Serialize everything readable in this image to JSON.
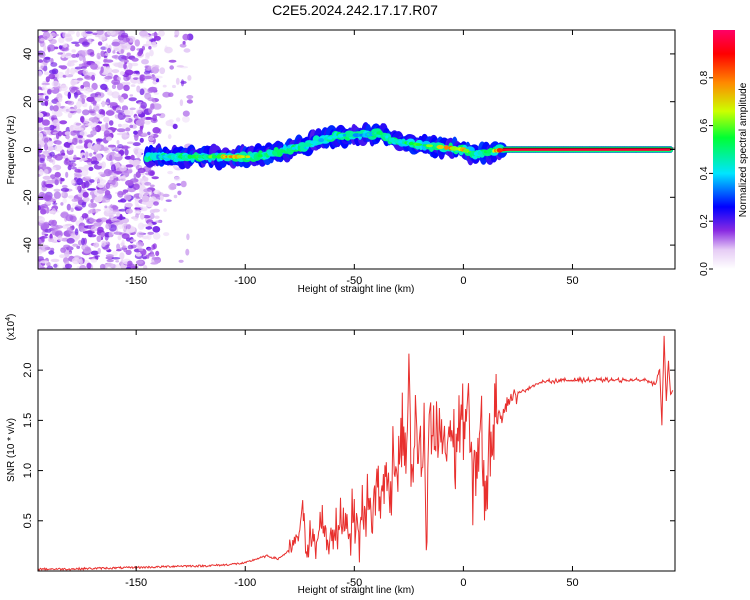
{
  "chart_data": [
    {
      "type": "heatmap",
      "title": "C2E5.2024.242.17.17.R07",
      "xlabel": "Height of straight line (km)",
      "ylabel": "Frequency (Hz)",
      "xlim": [
        -195,
        97
      ],
      "ylim": [
        -50,
        50
      ],
      "xticks": [
        "-150",
        "-100",
        "-50",
        "0",
        "50"
      ],
      "yticks": [
        "40",
        "20",
        "0",
        "-20",
        "-40"
      ],
      "grid": false,
      "colorbar": {
        "label": "Normalized spectral amplitude",
        "range": [
          0,
          1
        ],
        "ticks": [
          "0.0",
          "0.2",
          "0.4",
          "0.6",
          "0.8"
        ],
        "colors": [
          "#ffffff",
          "#e6ccf5",
          "#8a2be2",
          "#0000ff",
          "#00e5ff",
          "#00ff33",
          "#ccff00",
          "#ff8800",
          "#ff0000",
          "#ff0066"
        ]
      },
      "ridge": {
        "x": [
          -145,
          -135,
          -125,
          -115,
          -105,
          -95,
          -85,
          -75,
          -65,
          -55,
          -45,
          -38,
          -33,
          -28,
          -20,
          -10,
          0,
          5,
          10,
          20,
          40,
          60,
          80,
          95
        ],
        "y": [
          -3,
          -3,
          -3,
          -3,
          -3,
          -3,
          -1,
          1,
          4,
          6,
          6,
          7,
          4,
          3,
          2,
          1,
          0,
          -2,
          -1,
          0,
          0,
          0,
          0,
          0
        ],
        "amplitude": [
          0.35,
          0.45,
          0.5,
          0.6,
          0.8,
          0.55,
          0.5,
          0.45,
          0.45,
          0.45,
          0.4,
          0.5,
          0.45,
          0.5,
          0.55,
          0.75,
          0.8,
          0.45,
          0.5,
          0.95,
          0.95,
          0.95,
          0.95,
          0.95
        ]
      },
      "noise_region_x": [
        -195,
        -125
      ]
    },
    {
      "type": "line",
      "xlabel": "Height of straight line (km)",
      "ylabel": "SNR (10 * v/v)",
      "y_multiplier": "(x10",
      "y_multiplier_exp": "4",
      "y_multiplier_close": ")",
      "xlim": [
        -195,
        97
      ],
      "ylim": [
        0,
        2.4
      ],
      "xticks": [
        "-150",
        "-100",
        "-50",
        "0",
        "50"
      ],
      "yticks": [
        "0.5",
        "1.0",
        "1.5",
        "2.0"
      ],
      "grid": false,
      "color": "#e8302e",
      "series": [
        {
          "x": [
            -195,
            -180,
            -160,
            -140,
            -130,
            -120,
            -110,
            -100,
            -95,
            -90,
            -85,
            -80,
            -76,
            -74,
            -72,
            -70,
            -68,
            -65,
            -62,
            -60,
            -58,
            -55,
            -52,
            -50,
            -48,
            -45,
            -42,
            -40,
            -38,
            -36,
            -34,
            -32,
            -30,
            -28,
            -26,
            -25,
            -24,
            -23,
            -22,
            -21,
            -20,
            -19,
            -18,
            -17,
            -16,
            -15,
            -14,
            -12,
            -10,
            -8,
            -6,
            -4,
            -2,
            0,
            2,
            4,
            6,
            8,
            10,
            12,
            14,
            16,
            18,
            20,
            24,
            28,
            32,
            36,
            40,
            50,
            60,
            70,
            80,
            85,
            88,
            90,
            91,
            92,
            93,
            94,
            95,
            96
          ],
          "y": [
            0.02,
            0.02,
            0.03,
            0.04,
            0.05,
            0.05,
            0.06,
            0.08,
            0.12,
            0.15,
            0.12,
            0.2,
            0.3,
            0.62,
            0.25,
            0.35,
            0.2,
            0.5,
            0.28,
            0.45,
            0.35,
            0.55,
            0.4,
            0.6,
            0.35,
            0.7,
            0.5,
            0.9,
            0.6,
            1.1,
            0.7,
            1.2,
            0.9,
            1.6,
            1.1,
            2.2,
            1.0,
            0.8,
            1.6,
            1.2,
            1.4,
            0.9,
            1.5,
            0.15,
            1.3,
            1.5,
            1.2,
            1.3,
            1.4,
            1.2,
            1.5,
            1.1,
            1.6,
            1.3,
            1.7,
            0.9,
            1.2,
            1.4,
            0.75,
            1.4,
            1.3,
            1.6,
            1.55,
            1.7,
            1.75,
            1.8,
            1.85,
            1.88,
            1.89,
            1.9,
            1.9,
            1.9,
            1.9,
            1.9,
            1.85,
            2.0,
            1.45,
            2.35,
            1.7,
            2.1,
            1.75,
            1.8
          ]
        }
      ]
    }
  ]
}
